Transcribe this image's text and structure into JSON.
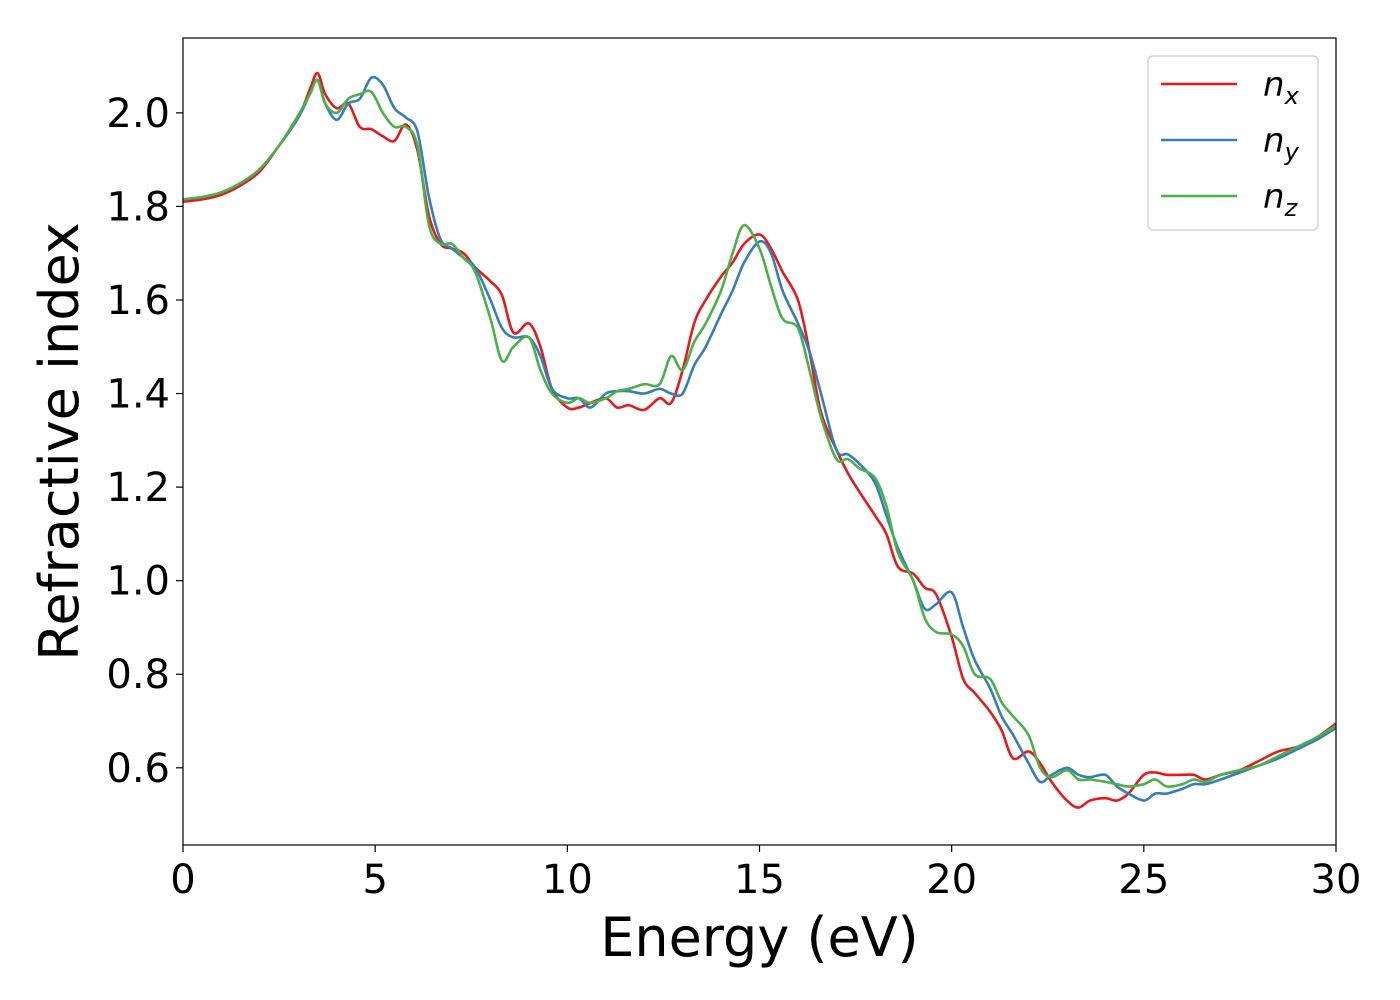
{
  "chart_data": {
    "type": "line",
    "xlabel": "Energy (eV)",
    "ylabel": "Refractive index",
    "xlim": [
      0,
      30
    ],
    "ylim": [
      0.435,
      2.16
    ],
    "xticks": [
      0,
      5,
      10,
      15,
      20,
      25,
      30
    ],
    "xtick_labels": [
      "0",
      "5",
      "10",
      "15",
      "20",
      "25",
      "30"
    ],
    "yticks": [
      0.6,
      0.8,
      1.0,
      1.2,
      1.4,
      1.6,
      1.8,
      2.0
    ],
    "ytick_labels": [
      "0.6",
      "0.8",
      "1.0",
      "1.2",
      "1.4",
      "1.6",
      "1.8",
      "2.0"
    ],
    "grid": false,
    "legend_position": "top-right",
    "series": [
      {
        "name": "n_x",
        "label_base": "n",
        "label_sub": "x",
        "color": "#e41a1c",
        "x": [
          0,
          0.5,
          1,
          1.5,
          2,
          2.5,
          3,
          3.3,
          3.5,
          3.7,
          4,
          4.3,
          4.6,
          4.9,
          5.2,
          5.5,
          5.8,
          6.1,
          6.4,
          6.7,
          7,
          7.3,
          7.6,
          8,
          8.3,
          8.6,
          9,
          9.3,
          9.6,
          10,
          10.3,
          10.6,
          11,
          11.3,
          11.6,
          12,
          12.4,
          12.7,
          13,
          13.3,
          13.6,
          14,
          14.3,
          14.6,
          15,
          15.3,
          15.6,
          16,
          16.3,
          16.6,
          17,
          17.3,
          17.6,
          18,
          18.3,
          18.6,
          19,
          19.3,
          19.6,
          20,
          20.3,
          20.6,
          21,
          21.3,
          21.6,
          22,
          22.3,
          22.6,
          23,
          23.3,
          23.6,
          24,
          24.3,
          24.6,
          25,
          25.3,
          25.6,
          26,
          26.3,
          26.6,
          27,
          27.5,
          28,
          28.5,
          29,
          29.5,
          30
        ],
        "y": [
          1.81,
          1.815,
          1.825,
          1.845,
          1.875,
          1.93,
          1.99,
          2.05,
          2.085,
          2.04,
          2.01,
          2.02,
          1.97,
          1.965,
          1.95,
          1.94,
          1.975,
          1.92,
          1.78,
          1.72,
          1.71,
          1.7,
          1.67,
          1.64,
          1.61,
          1.53,
          1.55,
          1.5,
          1.41,
          1.37,
          1.37,
          1.38,
          1.39,
          1.37,
          1.375,
          1.365,
          1.39,
          1.38,
          1.45,
          1.55,
          1.6,
          1.65,
          1.68,
          1.72,
          1.74,
          1.71,
          1.66,
          1.6,
          1.49,
          1.36,
          1.28,
          1.23,
          1.19,
          1.14,
          1.1,
          1.03,
          1.015,
          0.985,
          0.97,
          0.88,
          0.79,
          0.76,
          0.72,
          0.68,
          0.62,
          0.635,
          0.61,
          0.57,
          0.53,
          0.515,
          0.53,
          0.535,
          0.53,
          0.545,
          0.585,
          0.59,
          0.585,
          0.585,
          0.585,
          0.575,
          0.585,
          0.595,
          0.615,
          0.635,
          0.645,
          0.665,
          0.695
        ]
      },
      {
        "name": "n_y",
        "label_base": "n",
        "label_sub": "y",
        "color": "#377eb8",
        "x": [
          0,
          0.5,
          1,
          1.5,
          2,
          2.5,
          3,
          3.3,
          3.5,
          3.7,
          4,
          4.3,
          4.6,
          4.9,
          5.2,
          5.5,
          5.8,
          6.1,
          6.4,
          6.7,
          7,
          7.3,
          7.6,
          8,
          8.3,
          8.6,
          9,
          9.3,
          9.6,
          10,
          10.3,
          10.6,
          11,
          11.3,
          11.6,
          12,
          12.4,
          12.7,
          13,
          13.3,
          13.6,
          14,
          14.3,
          14.6,
          15,
          15.3,
          15.6,
          16,
          16.3,
          16.6,
          17,
          17.3,
          17.6,
          18,
          18.3,
          18.6,
          19,
          19.3,
          19.6,
          20,
          20.3,
          20.6,
          21,
          21.3,
          21.6,
          22,
          22.3,
          22.6,
          23,
          23.3,
          23.6,
          24,
          24.3,
          24.6,
          25,
          25.3,
          25.6,
          26,
          26.3,
          26.6,
          27,
          27.5,
          28,
          28.5,
          29,
          29.5,
          30
        ],
        "y": [
          1.815,
          1.82,
          1.83,
          1.85,
          1.88,
          1.93,
          1.99,
          2.04,
          2.07,
          2.02,
          1.985,
          2.02,
          2.03,
          2.075,
          2.06,
          2.01,
          1.99,
          1.96,
          1.82,
          1.73,
          1.71,
          1.69,
          1.67,
          1.6,
          1.54,
          1.52,
          1.52,
          1.48,
          1.41,
          1.39,
          1.39,
          1.37,
          1.4,
          1.405,
          1.405,
          1.4,
          1.41,
          1.4,
          1.4,
          1.46,
          1.5,
          1.57,
          1.62,
          1.68,
          1.725,
          1.7,
          1.62,
          1.55,
          1.49,
          1.4,
          1.28,
          1.27,
          1.25,
          1.21,
          1.14,
          1.07,
          1.0,
          0.94,
          0.95,
          0.975,
          0.9,
          0.83,
          0.77,
          0.71,
          0.67,
          0.61,
          0.57,
          0.585,
          0.6,
          0.585,
          0.58,
          0.585,
          0.56,
          0.545,
          0.53,
          0.545,
          0.545,
          0.555,
          0.565,
          0.565,
          0.575,
          0.59,
          0.605,
          0.62,
          0.64,
          0.66,
          0.685
        ]
      },
      {
        "name": "n_z",
        "label_base": "n",
        "label_sub": "z",
        "color": "#4daf4a",
        "x": [
          0,
          0.5,
          1,
          1.5,
          2,
          2.5,
          3,
          3.3,
          3.5,
          3.7,
          4,
          4.3,
          4.6,
          4.9,
          5.2,
          5.5,
          5.8,
          6.1,
          6.4,
          6.7,
          7,
          7.3,
          7.6,
          8,
          8.3,
          8.6,
          9,
          9.3,
          9.6,
          10,
          10.3,
          10.6,
          11,
          11.3,
          11.6,
          12,
          12.4,
          12.7,
          13,
          13.3,
          13.6,
          14,
          14.3,
          14.6,
          15,
          15.3,
          15.6,
          16,
          16.3,
          16.6,
          17,
          17.3,
          17.6,
          18,
          18.3,
          18.6,
          19,
          19.3,
          19.6,
          20,
          20.3,
          20.6,
          21,
          21.3,
          21.6,
          22,
          22.3,
          22.6,
          23,
          23.3,
          23.6,
          24,
          24.3,
          24.6,
          25,
          25.3,
          25.6,
          26,
          26.3,
          26.6,
          27,
          27.5,
          28,
          28.5,
          29,
          29.5,
          30
        ],
        "y": [
          1.815,
          1.82,
          1.83,
          1.85,
          1.88,
          1.93,
          1.995,
          2.04,
          2.07,
          2.02,
          2.0,
          2.03,
          2.04,
          2.045,
          2.0,
          1.97,
          1.97,
          1.93,
          1.76,
          1.72,
          1.72,
          1.69,
          1.66,
          1.56,
          1.47,
          1.5,
          1.52,
          1.45,
          1.4,
          1.38,
          1.39,
          1.38,
          1.39,
          1.405,
          1.41,
          1.42,
          1.42,
          1.48,
          1.45,
          1.51,
          1.55,
          1.62,
          1.7,
          1.76,
          1.71,
          1.63,
          1.56,
          1.54,
          1.45,
          1.35,
          1.26,
          1.26,
          1.24,
          1.22,
          1.16,
          1.06,
          1.0,
          0.92,
          0.89,
          0.885,
          0.86,
          0.8,
          0.79,
          0.74,
          0.71,
          0.67,
          0.6,
          0.58,
          0.595,
          0.575,
          0.575,
          0.57,
          0.565,
          0.56,
          0.565,
          0.575,
          0.56,
          0.565,
          0.575,
          0.57,
          0.585,
          0.595,
          0.605,
          0.625,
          0.645,
          0.665,
          0.69
        ]
      }
    ]
  }
}
